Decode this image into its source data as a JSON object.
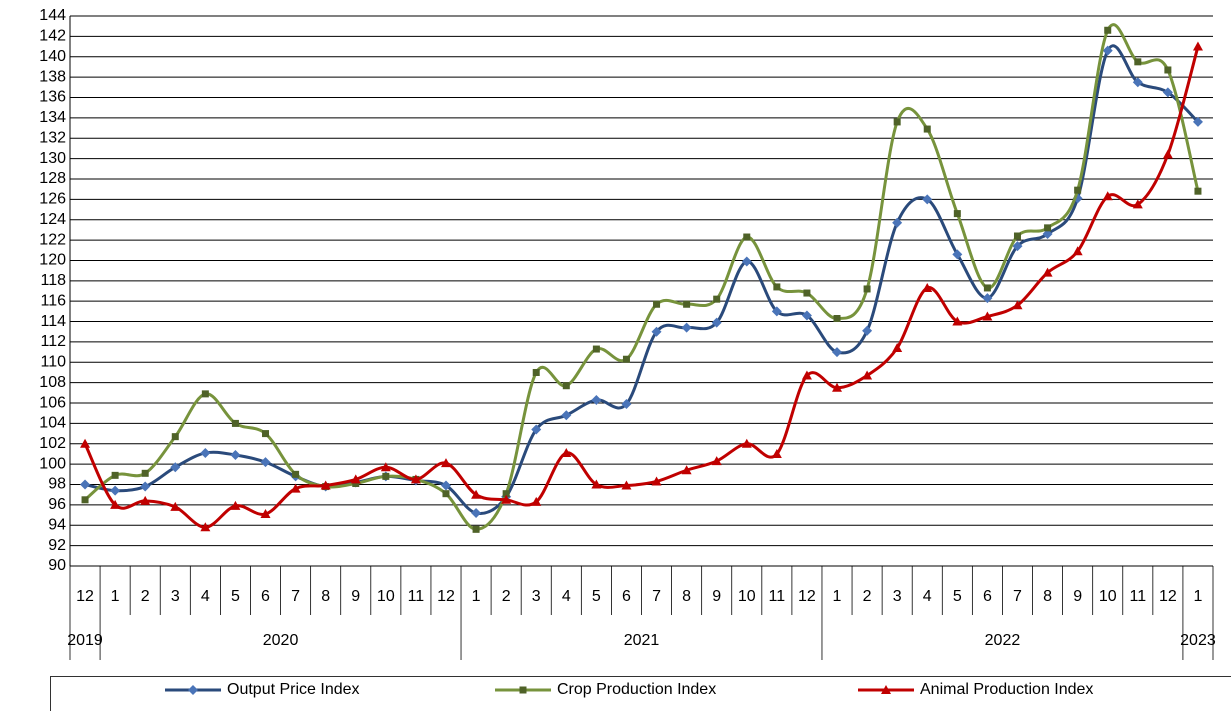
{
  "chart_data": {
    "type": "line",
    "categories": [
      "12",
      "1",
      "2",
      "3",
      "4",
      "5",
      "6",
      "7",
      "8",
      "9",
      "10",
      "11",
      "12",
      "1",
      "2",
      "3",
      "4",
      "5",
      "6",
      "7",
      "8",
      "9",
      "10",
      "11",
      "12",
      "1",
      "2",
      "3",
      "4",
      "5",
      "6",
      "7",
      "8",
      "9",
      "10",
      "11",
      "12",
      "1"
    ],
    "years": [
      "2019",
      "2020",
      "2021",
      "2022",
      "2023"
    ],
    "series": [
      {
        "name": "Output Price Index",
        "color": "#2a4a7b",
        "marker": "diamond",
        "marker_color": "#4a74b8",
        "values": [
          98.0,
          97.4,
          97.8,
          99.7,
          101.1,
          100.9,
          100.2,
          98.8,
          97.8,
          98.2,
          98.8,
          98.4,
          97.9,
          95.2,
          96.8,
          103.4,
          104.8,
          106.3,
          105.9,
          113.0,
          113.4,
          113.9,
          119.9,
          115.0,
          114.6,
          111.0,
          113.1,
          123.7,
          126.0,
          120.6,
          116.3,
          121.4,
          122.6,
          126.1,
          140.6,
          137.5,
          136.5,
          133.6
        ]
      },
      {
        "name": "Crop Production Index",
        "color": "#77933c",
        "marker": "square",
        "marker_color": "#4f6228",
        "values": [
          96.5,
          98.9,
          99.1,
          102.7,
          106.9,
          104.0,
          103.0,
          99.0,
          97.8,
          98.1,
          98.8,
          98.5,
          97.1,
          93.6,
          97.1,
          109.0,
          107.7,
          111.3,
          110.3,
          115.7,
          115.7,
          116.2,
          122.3,
          117.4,
          116.8,
          114.3,
          117.2,
          133.6,
          132.9,
          124.6,
          117.3,
          122.4,
          123.2,
          126.9,
          142.6,
          139.5,
          138.7,
          126.8
        ]
      },
      {
        "name": "Animal Production Index",
        "color": "#c00000",
        "marker": "triangle",
        "marker_color": "#c00000",
        "values": [
          102.0,
          96.0,
          96.4,
          95.8,
          93.8,
          95.9,
          95.1,
          97.6,
          97.9,
          98.5,
          99.7,
          98.5,
          100.1,
          97.0,
          96.5,
          96.3,
          101.1,
          98.0,
          97.9,
          98.3,
          99.4,
          100.3,
          102.0,
          101.0,
          108.7,
          107.5,
          108.7,
          111.4,
          117.3,
          114.0,
          114.5,
          115.6,
          118.8,
          120.9,
          126.3,
          125.5,
          130.4,
          141.0
        ]
      }
    ],
    "ylim": [
      90,
      144
    ],
    "yticks": [
      90,
      92,
      94,
      96,
      98,
      100,
      102,
      104,
      106,
      108,
      110,
      112,
      114,
      116,
      118,
      120,
      122,
      124,
      126,
      128,
      130,
      132,
      134,
      136,
      138,
      140,
      142,
      144
    ],
    "grid": true
  }
}
